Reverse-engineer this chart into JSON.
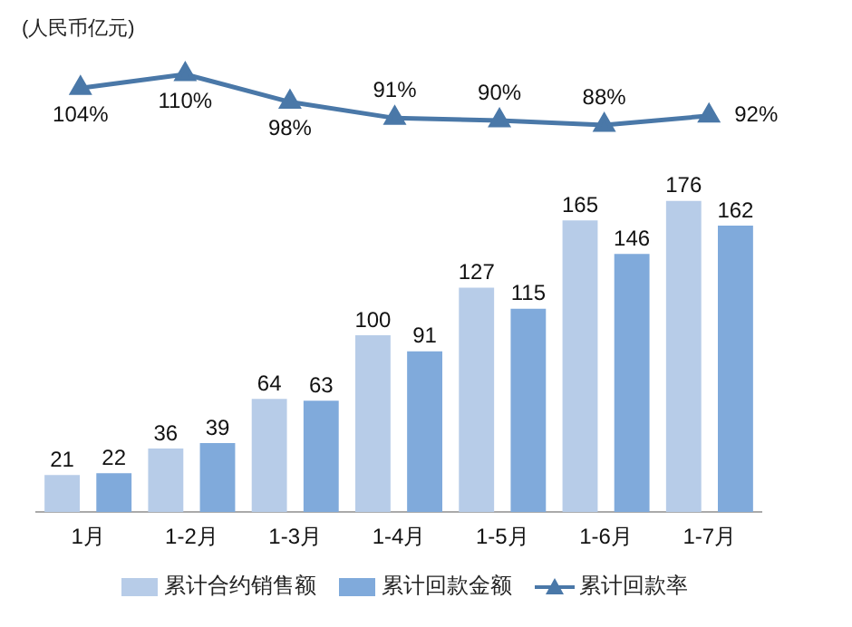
{
  "chart_data": [
    {
      "type": "line",
      "annotations": [
        "(人民币亿元)"
      ],
      "categories": [
        null,
        null,
        null,
        null,
        null,
        null,
        null
      ],
      "tick_labels": false,
      "series": [
        {
          "name": "累计回款率",
          "color": "#4a78a8",
          "values": [
            104,
            110,
            98,
            91,
            90,
            88,
            92
          ],
          "value_labels": [
            "104%",
            "110%",
            "98%",
            "91%",
            "90%",
            "88%",
            "92%"
          ]
        }
      ],
      "marker": "triangle",
      "legend": "bottom"
    },
    {
      "type": "bar",
      "categories": [
        "1月",
        "1-2月",
        "1-3月",
        "1-4月",
        "1-5月",
        "1-6月",
        "1-7月"
      ],
      "series": [
        {
          "name": "累计合约销售额",
          "color": "#b7cce8",
          "values": [
            21,
            36,
            64,
            100,
            127,
            165,
            176
          ]
        },
        {
          "name": "累计回款金额",
          "color": "#80aadb",
          "values": [
            22,
            39,
            63,
            91,
            115,
            146,
            162
          ]
        }
      ],
      "data_labels": true,
      "legend": "bottom"
    }
  ]
}
